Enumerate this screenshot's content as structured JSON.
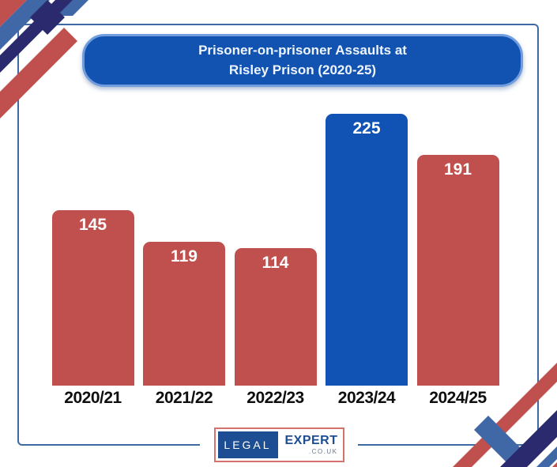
{
  "title": {
    "line1": "Prisoner-on-prisoner Assaults at",
    "line2": "Risley Prison (2020-25)"
  },
  "chart_data": {
    "type": "bar",
    "title": "Prisoner-on-prisoner Assaults at Risley Prison (2020-25)",
    "categories": [
      "2020/21",
      "2021/22",
      "2022/23",
      "2023/24",
      "2024/25"
    ],
    "values": [
      145,
      119,
      114,
      225,
      191
    ],
    "xlabel": "",
    "ylabel": "",
    "ylim": [
      0,
      240
    ],
    "grid": false,
    "axes_visible": false,
    "value_labels": "inside-top, white, bold",
    "bar_colors": [
      "#c0504d",
      "#c0504d",
      "#c0504d",
      "#1153b4",
      "#c0504d"
    ],
    "highlight_index": 3,
    "highlight_color": "#1153b4",
    "base_color": "#c0504d"
  },
  "logo": {
    "legal": "LEGAL",
    "expert": "EXPERT",
    "domain": ".CO.UK"
  },
  "colors": {
    "bar_red": "#c0504d",
    "bar_blue": "#1153b4",
    "title_bg": "#1253b1",
    "title_border": "#719dde",
    "title_text": "#eef5ff",
    "frame_border": "#3e69a5",
    "ribbon_red": "#c0504d",
    "ribbon_steel": "#4168a6",
    "ribbon_navy": "#2b2a6e",
    "category_text": "#0e0e0e",
    "logo_navy": "#1d4d92",
    "logo_border": "#d4726b",
    "logo_domain_text": "#68798a",
    "background": "#ffffff"
  }
}
